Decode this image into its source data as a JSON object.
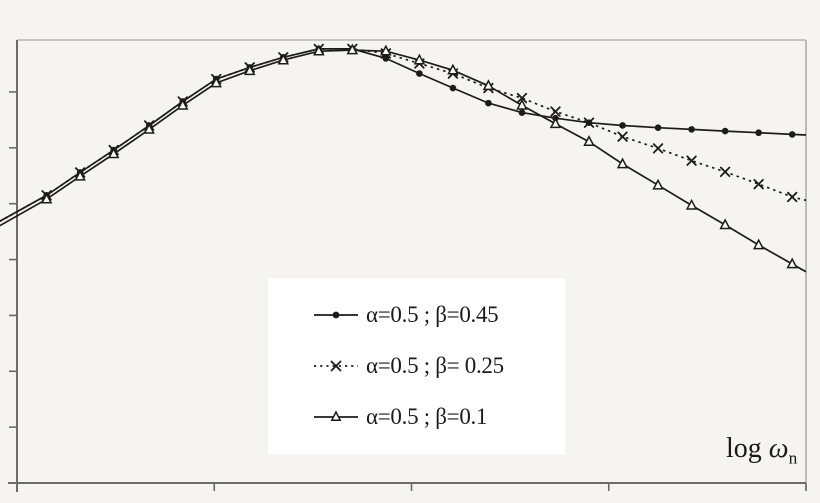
{
  "figure": {
    "title": "",
    "xlabel_text": "log ",
    "xlabel_omega": "ω",
    "xlabel_sub": "n"
  },
  "colors": {
    "background": "#f5f4f2",
    "curve": "#1c1c1c",
    "axis": "#6b6b6b",
    "frame": "#b5b5b5",
    "legend_background": "#ffffff",
    "triangle_fill": "#faf9f7"
  },
  "chart_data": {
    "type": "line",
    "title": "",
    "xlabel": "log ωn",
    "ylabel": "",
    "grid": false,
    "tick_labels_visible": false,
    "legend_position": "lower-center-inside",
    "axes": {
      "xlim": [
        0,
        4
      ],
      "ylim": [
        0,
        7.93
      ],
      "x_ticks": [
        0,
        1,
        2,
        3,
        4
      ],
      "y_ticks": [
        1,
        2,
        3,
        4,
        5,
        6,
        7
      ]
    },
    "x": [
      -0.09,
      0.15,
      0.32,
      0.49,
      0.67,
      0.84,
      1.01,
      1.18,
      1.35,
      1.53,
      1.7,
      1.87,
      2.04,
      2.21,
      2.39,
      2.56,
      2.73,
      2.9,
      3.07,
      3.25,
      3.42,
      3.59,
      3.76,
      3.93,
      4.0
    ],
    "series": [
      {
        "name": "α=0.5 ; β=0.45",
        "marker": "dot",
        "line": "solid",
        "y": [
          4.68,
          5.15,
          5.56,
          5.96,
          6.4,
          6.83,
          7.23,
          7.44,
          7.62,
          7.77,
          7.77,
          7.6,
          7.33,
          7.07,
          6.8,
          6.63,
          6.53,
          6.45,
          6.4,
          6.36,
          6.33,
          6.3,
          6.27,
          6.24,
          6.23
        ]
      },
      {
        "name": "α=0.5 ; β= 0.25",
        "marker": "x",
        "line": "dotted",
        "y": [
          4.68,
          5.15,
          5.56,
          5.96,
          6.4,
          6.83,
          7.23,
          7.44,
          7.62,
          7.77,
          7.77,
          7.69,
          7.51,
          7.33,
          7.07,
          6.89,
          6.65,
          6.45,
          6.2,
          5.99,
          5.77,
          5.57,
          5.35,
          5.12,
          5.06
        ]
      },
      {
        "name": "α=0.5 ; β=0.1",
        "marker": "triangle",
        "line": "solid",
        "y": [
          4.6,
          5.08,
          5.49,
          5.89,
          6.33,
          6.76,
          7.16,
          7.38,
          7.57,
          7.73,
          7.75,
          7.73,
          7.57,
          7.39,
          7.11,
          6.76,
          6.43,
          6.11,
          5.71,
          5.33,
          4.97,
          4.62,
          4.26,
          3.92,
          3.78
        ]
      }
    ]
  }
}
